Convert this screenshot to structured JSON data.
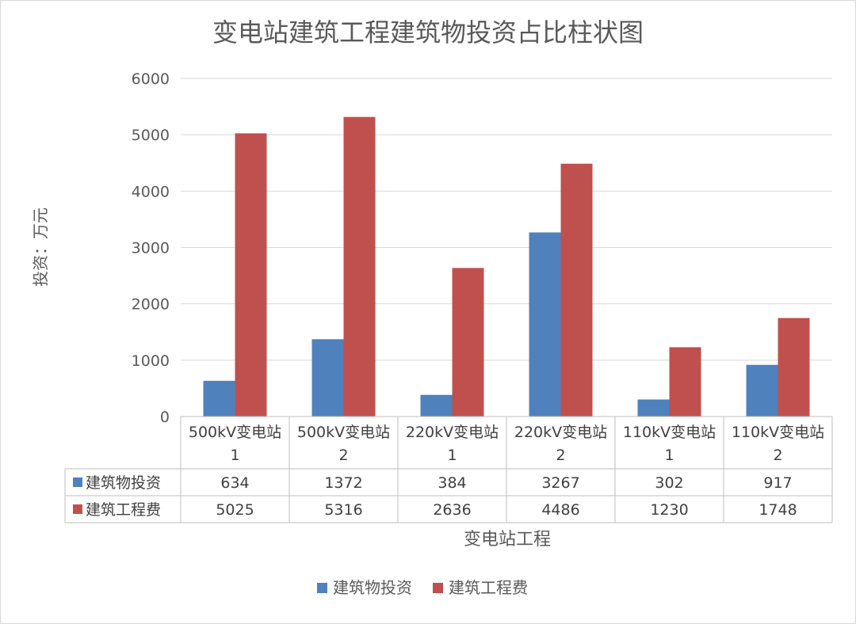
{
  "chart_data": {
    "type": "bar",
    "title": "变电站建筑工程建筑物投资占比柱状图",
    "xlabel": "变电站工程",
    "ylabel": "投资：万元",
    "ylim": [
      0,
      6000
    ],
    "yticks": [
      0,
      1000,
      2000,
      3000,
      4000,
      5000,
      6000
    ],
    "grid": true,
    "legend_position": "bottom",
    "data_table": true,
    "categories": [
      [
        "500kV变电站",
        "1"
      ],
      [
        "500kV变电站",
        "2"
      ],
      [
        "220kV变电站",
        "1"
      ],
      [
        "220kV变电站",
        "2"
      ],
      [
        "110kV变电站",
        "1"
      ],
      [
        "110kV变电站",
        "2"
      ]
    ],
    "series": [
      {
        "name": "建筑物投资",
        "color": "#4f81bd",
        "values": [
          634,
          1372,
          384,
          3267,
          302,
          917
        ]
      },
      {
        "name": "建筑工程费",
        "color": "#c0504d",
        "values": [
          5025,
          5316,
          2636,
          4486,
          1230,
          1748
        ]
      }
    ]
  }
}
